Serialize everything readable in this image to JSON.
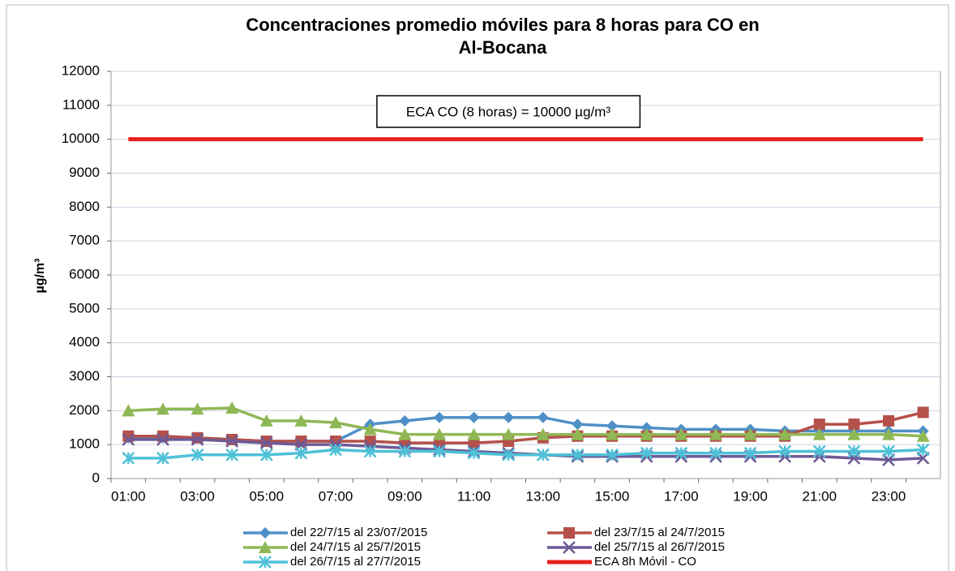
{
  "chart_data": {
    "type": "line",
    "title": [
      "Concentraciones promedio móviles para 8 horas para CO en",
      "Al-Bocana"
    ],
    "y_label": "µg/m³",
    "annotation": "ECA CO (8 horas) = 10000 µg/m³",
    "categories": [
      "01:00",
      null,
      "03:00",
      null,
      "05:00",
      null,
      "07:00",
      null,
      "09:00",
      null,
      "11:00",
      null,
      "13:00",
      null,
      "15:00",
      null,
      "17:00",
      null,
      "19:00",
      null,
      "21:00",
      null,
      "23:00",
      null
    ],
    "ylim": [
      0,
      12000
    ],
    "yticks": [
      0,
      1000,
      2000,
      3000,
      4000,
      5000,
      6000,
      7000,
      8000,
      9000,
      10000,
      11000,
      12000
    ],
    "grid": true,
    "legend": "bottom",
    "series": [
      {
        "name": "del 22/7/15 al 23/07/2015",
        "color": "#4f8fc8",
        "marker": "diamond",
        "values": [
          1200,
          1200,
          1200,
          1150,
          1100,
          1100,
          1100,
          1600,
          1700,
          1800,
          1800,
          1800,
          1800,
          1600,
          1550,
          1500,
          1450,
          1450,
          1450,
          1400,
          1400,
          1400,
          1400,
          1400
        ]
      },
      {
        "name": "del 23/7/15 al 24/7/2015",
        "color": "#b5504a",
        "marker": "square",
        "values": [
          1250,
          1250,
          1200,
          1150,
          1100,
          1100,
          1100,
          1100,
          1050,
          1050,
          1050,
          1100,
          1200,
          1250,
          1250,
          1250,
          1250,
          1250,
          1250,
          1250,
          1600,
          1600,
          1700,
          1950
        ]
      },
      {
        "name": "del 24/7/15 al 25/7/2015",
        "color": "#8fb855",
        "marker": "triangle",
        "values": [
          2000,
          2050,
          2050,
          2080,
          1700,
          1700,
          1650,
          1450,
          1300,
          1300,
          1300,
          1300,
          1300,
          1300,
          1300,
          1300,
          1300,
          1300,
          1300,
          1300,
          1300,
          1300,
          1300,
          1250
        ]
      },
      {
        "name": "del 25/7/15 al 26/7/2015",
        "color": "#6e5a96",
        "marker": "x",
        "values": [
          1150,
          1150,
          1150,
          1100,
          1050,
          1000,
          1000,
          950,
          900,
          850,
          800,
          750,
          700,
          650,
          650,
          650,
          650,
          650,
          650,
          650,
          650,
          600,
          550,
          600
        ]
      },
      {
        "name": "del 26/7/15 al 27/7/2015",
        "color": "#4ec1d8",
        "marker": "star",
        "values": [
          600,
          600,
          700,
          700,
          700,
          750,
          850,
          800,
          800,
          800,
          750,
          700,
          700,
          700,
          700,
          750,
          750,
          750,
          750,
          800,
          800,
          800,
          800,
          850
        ]
      },
      {
        "name": "ECA 8h Móvil - CO",
        "color": "#e8201c",
        "marker": "none",
        "width": 5,
        "values": [
          10000,
          10000,
          10000,
          10000,
          10000,
          10000,
          10000,
          10000,
          10000,
          10000,
          10000,
          10000,
          10000,
          10000,
          10000,
          10000,
          10000,
          10000,
          10000,
          10000,
          10000,
          10000,
          10000,
          10000
        ]
      }
    ]
  }
}
